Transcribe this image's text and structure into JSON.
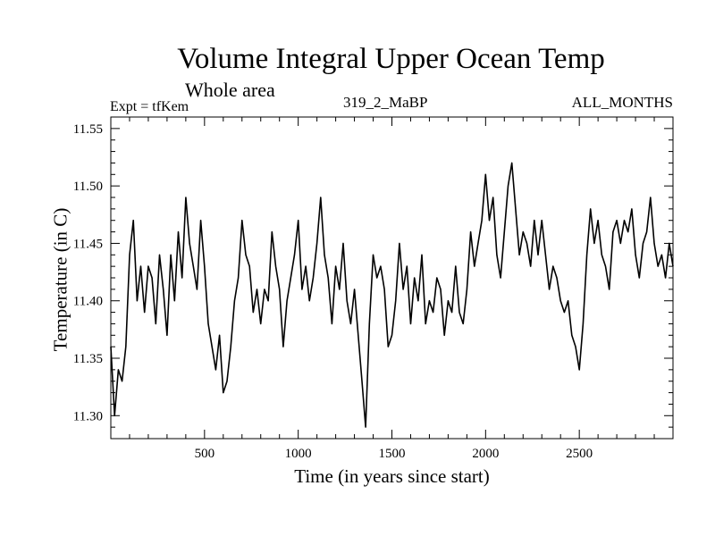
{
  "chart_data": {
    "type": "line",
    "title": "Volume Integral Upper Ocean Temp",
    "subtitle": "Whole area",
    "annotations": {
      "experiment": "Expt = tfKem",
      "run": "319_2_MaBP",
      "months": "ALL_MONTHS"
    },
    "xlabel": "Time (in years since start)",
    "ylabel": "Temperature (in C)",
    "xlim": [
      0,
      3000
    ],
    "ylim": [
      11.28,
      11.56
    ],
    "xticks_labeled": [
      500,
      1000,
      1500,
      2000,
      2500
    ],
    "xticks_minor_step": 100,
    "yticks_labeled": [
      "11.30",
      "11.35",
      "11.40",
      "11.45",
      "11.50",
      "11.55"
    ],
    "yticks_minor_step": 0.01,
    "grid": false,
    "line_color": "#000000",
    "series": [
      {
        "x": [
          0,
          20,
          40,
          60,
          80,
          100,
          120,
          140,
          160,
          180,
          200,
          220,
          240,
          260,
          280,
          300,
          320,
          340,
          360,
          380,
          400,
          420,
          440,
          460,
          480,
          500,
          520,
          540,
          560,
          580,
          600,
          620,
          640,
          660,
          680,
          700,
          720,
          740,
          760,
          780,
          800,
          820,
          840,
          860,
          880,
          900,
          920,
          940,
          960,
          980,
          1000,
          1020,
          1040,
          1060,
          1080,
          1100,
          1120,
          1140,
          1160,
          1180,
          1200,
          1220,
          1240,
          1260,
          1280,
          1300,
          1320,
          1340,
          1360,
          1380,
          1400,
          1420,
          1440,
          1460,
          1480,
          1500,
          1520,
          1540,
          1560,
          1580,
          1600,
          1620,
          1640,
          1660,
          1680,
          1700,
          1720,
          1740,
          1760,
          1780,
          1800,
          1820,
          1840,
          1860,
          1880,
          1900,
          1920,
          1940,
          1960,
          1980,
          2000,
          2020,
          2040,
          2060,
          2080,
          2100,
          2120,
          2140,
          2160,
          2180,
          2200,
          2220,
          2240,
          2260,
          2280,
          2300,
          2320,
          2340,
          2360,
          2380,
          2400,
          2420,
          2440,
          2460,
          2480,
          2500,
          2520,
          2540,
          2560,
          2580,
          2600,
          2620,
          2640,
          2660,
          2680,
          2700,
          2720,
          2740,
          2760,
          2780,
          2800,
          2820,
          2840,
          2860,
          2880,
          2900,
          2920,
          2940,
          2960,
          2980,
          3000
        ],
        "y": [
          11.36,
          11.3,
          11.34,
          11.33,
          11.36,
          11.44,
          11.47,
          11.4,
          11.43,
          11.39,
          11.43,
          11.42,
          11.38,
          11.44,
          11.41,
          11.37,
          11.44,
          11.4,
          11.46,
          11.42,
          11.49,
          11.45,
          11.43,
          11.41,
          11.47,
          11.43,
          11.38,
          11.36,
          11.34,
          11.37,
          11.32,
          11.33,
          11.36,
          11.4,
          11.42,
          11.47,
          11.44,
          11.43,
          11.39,
          11.41,
          11.38,
          11.41,
          11.4,
          11.46,
          11.43,
          11.41,
          11.36,
          11.4,
          11.42,
          11.44,
          11.47,
          11.41,
          11.43,
          11.4,
          11.42,
          11.45,
          11.49,
          11.44,
          11.42,
          11.38,
          11.43,
          11.41,
          11.45,
          11.4,
          11.38,
          11.41,
          11.37,
          11.33,
          11.29,
          11.38,
          11.44,
          11.42,
          11.43,
          11.41,
          11.36,
          11.37,
          11.4,
          11.45,
          11.41,
          11.43,
          11.38,
          11.42,
          11.4,
          11.44,
          11.38,
          11.4,
          11.39,
          11.42,
          11.41,
          11.37,
          11.4,
          11.39,
          11.43,
          11.39,
          11.38,
          11.41,
          11.46,
          11.43,
          11.45,
          11.47,
          11.51,
          11.47,
          11.49,
          11.44,
          11.42,
          11.46,
          11.5,
          11.52,
          11.48,
          11.44,
          11.46,
          11.45,
          11.43,
          11.47,
          11.44,
          11.47,
          11.44,
          11.41,
          11.43,
          11.42,
          11.4,
          11.39,
          11.4,
          11.37,
          11.36,
          11.34,
          11.38,
          11.44,
          11.48,
          11.45,
          11.47,
          11.44,
          11.43,
          11.41,
          11.46,
          11.47,
          11.45,
          11.47,
          11.46,
          11.48,
          11.44,
          11.42,
          11.45,
          11.46,
          11.49,
          11.45,
          11.43,
          11.44,
          11.42,
          11.45,
          11.43
        ]
      }
    ]
  }
}
